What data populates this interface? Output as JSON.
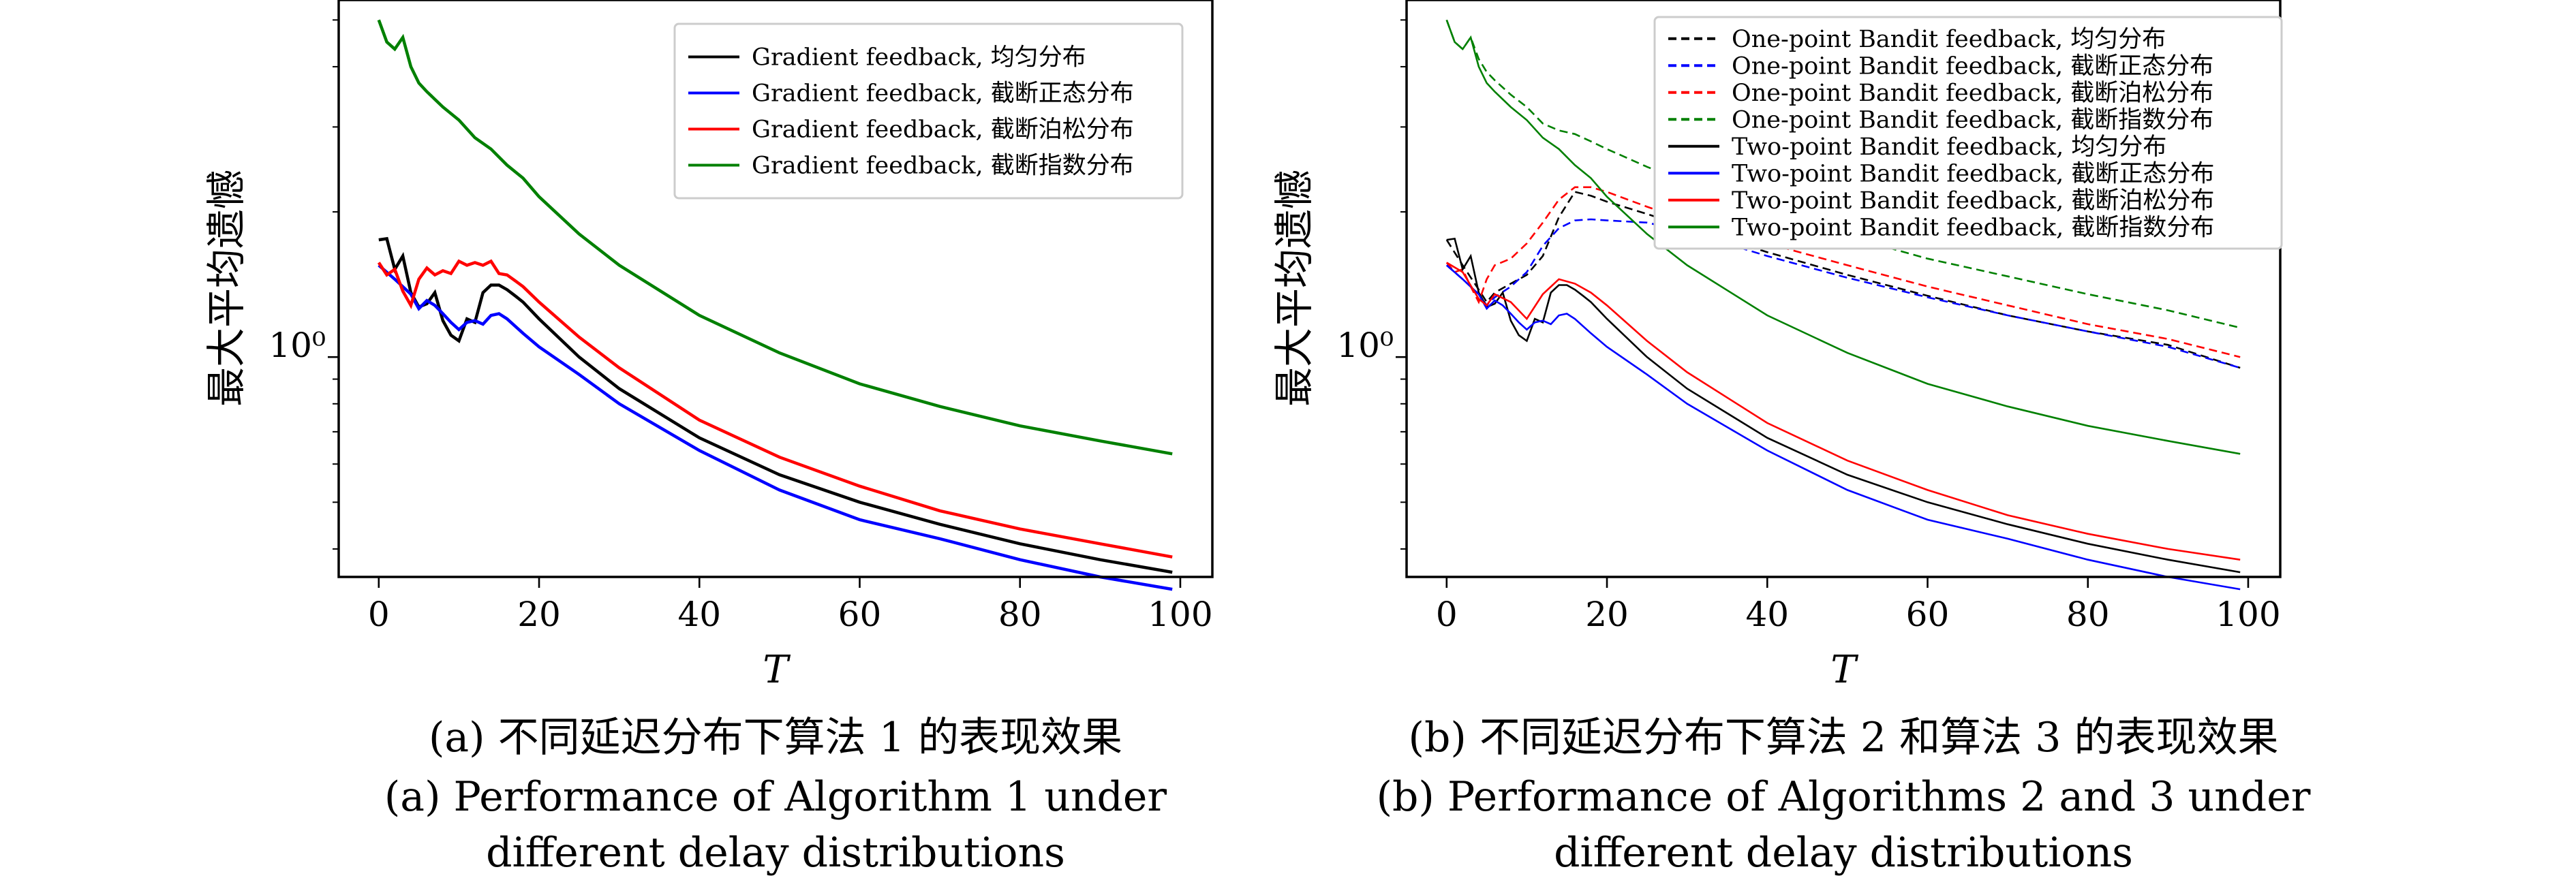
{
  "chart_data": [
    {
      "type": "line",
      "panel": "a",
      "xlabel": "T",
      "ylabel": "最大平均遗憾",
      "yscale": "log",
      "xlim": [
        -5,
        104
      ],
      "ylim": [
        0.35,
        5.5
      ],
      "xticks": [
        0,
        20,
        40,
        60,
        80,
        100
      ],
      "xtick_labels": [
        "0",
        "20",
        "40",
        "60",
        "80",
        "100"
      ],
      "ytick_label": "10⁰",
      "legend_position": "top-right",
      "caption_cn": "(a) 不同延迟分布下算法 1 的表现效果",
      "caption_en_line1": "(a) Performance of Algorithm 1 under",
      "caption_en_line2": "different delay distributions",
      "series": [
        {
          "name": "Gradient feedback, 均匀分布",
          "color": "#000000",
          "dash": "solid",
          "x": [
            0,
            1,
            2,
            3,
            4,
            5,
            6,
            7,
            8,
            9,
            10,
            11,
            12,
            13,
            14,
            15,
            16,
            17,
            18,
            20,
            25,
            30,
            40,
            50,
            60,
            70,
            80,
            90,
            99
          ],
          "y": [
            1.75,
            1.76,
            1.52,
            1.62,
            1.36,
            1.27,
            1.29,
            1.36,
            1.19,
            1.11,
            1.08,
            1.2,
            1.18,
            1.36,
            1.41,
            1.41,
            1.38,
            1.34,
            1.3,
            1.2,
            1.0,
            0.86,
            0.68,
            0.57,
            0.5,
            0.45,
            0.41,
            0.38,
            0.358
          ]
        },
        {
          "name": "Gradient feedback, 截断正态分布",
          "color": "#0000ff",
          "dash": "solid",
          "x": [
            0,
            2,
            4,
            5,
            6,
            7,
            8,
            9,
            10,
            11,
            12,
            13,
            14,
            15,
            16,
            18,
            20,
            25,
            30,
            40,
            50,
            60,
            70,
            80,
            90,
            99
          ],
          "y": [
            1.55,
            1.45,
            1.35,
            1.26,
            1.31,
            1.28,
            1.23,
            1.18,
            1.14,
            1.18,
            1.19,
            1.17,
            1.22,
            1.23,
            1.2,
            1.12,
            1.05,
            0.92,
            0.8,
            0.64,
            0.53,
            0.46,
            0.42,
            0.38,
            0.35,
            0.33
          ]
        },
        {
          "name": "Gradient feedback, 截断泊松分布",
          "color": "#ff0000",
          "dash": "solid",
          "x": [
            0,
            1,
            2,
            3,
            4,
            5,
            6,
            7,
            8,
            9,
            10,
            11,
            12,
            13,
            14,
            15,
            16,
            17,
            18,
            20,
            25,
            30,
            40,
            50,
            60,
            70,
            80,
            90,
            99
          ],
          "y": [
            1.57,
            1.48,
            1.52,
            1.37,
            1.28,
            1.45,
            1.53,
            1.48,
            1.51,
            1.49,
            1.58,
            1.55,
            1.57,
            1.55,
            1.58,
            1.49,
            1.48,
            1.44,
            1.4,
            1.3,
            1.1,
            0.95,
            0.74,
            0.62,
            0.54,
            0.48,
            0.44,
            0.41,
            0.385
          ]
        },
        {
          "name": "Gradient feedback, 截断指数分布",
          "color": "#008000",
          "dash": "solid",
          "x": [
            0,
            1,
            2,
            3,
            4,
            5,
            6,
            8,
            10,
            12,
            14,
            16,
            18,
            20,
            25,
            30,
            40,
            50,
            60,
            70,
            80,
            90,
            99
          ],
          "y": [
            5.0,
            4.5,
            4.35,
            4.6,
            4.0,
            3.7,
            3.55,
            3.3,
            3.1,
            2.85,
            2.7,
            2.5,
            2.35,
            2.15,
            1.8,
            1.55,
            1.22,
            1.02,
            0.88,
            0.79,
            0.72,
            0.67,
            0.63
          ]
        }
      ]
    },
    {
      "type": "line",
      "panel": "b",
      "xlabel": "T",
      "ylabel": "最大平均遗憾",
      "yscale": "log",
      "xlim": [
        -5,
        104
      ],
      "ylim": [
        0.35,
        5.5
      ],
      "xticks": [
        0,
        20,
        40,
        60,
        80,
        100
      ],
      "xtick_labels": [
        "0",
        "20",
        "40",
        "60",
        "80",
        "100"
      ],
      "ytick_label": "10⁰",
      "legend_position": "top-right",
      "caption_cn": "(b) 不同延迟分布下算法 2 和算法 3 的表现效果",
      "caption_en_line1": "(b) Performance of Algorithms 2 and 3 under",
      "caption_en_line2": "different delay distributions",
      "series": [
        {
          "name": "One-point Bandit feedback, 均匀分布",
          "color": "#000000",
          "dash": "dashed",
          "x": [
            0,
            2,
            4,
            5,
            6,
            8,
            10,
            12,
            14,
            16,
            18,
            20,
            25,
            30,
            40,
            50,
            60,
            70,
            80,
            90,
            99
          ],
          "y": [
            1.75,
            1.55,
            1.38,
            1.3,
            1.36,
            1.42,
            1.48,
            1.62,
            1.95,
            2.2,
            2.16,
            2.1,
            1.98,
            1.86,
            1.65,
            1.48,
            1.34,
            1.22,
            1.13,
            1.06,
            0.95
          ]
        },
        {
          "name": "One-point Bandit feedback, 截断正态分布",
          "color": "#0000ff",
          "dash": "dashed",
          "x": [
            0,
            2,
            4,
            5,
            6,
            8,
            10,
            12,
            14,
            16,
            18,
            20,
            25,
            30,
            40,
            50,
            60,
            70,
            80,
            90,
            99
          ],
          "y": [
            1.55,
            1.45,
            1.35,
            1.28,
            1.33,
            1.4,
            1.5,
            1.7,
            1.85,
            1.92,
            1.93,
            1.92,
            1.9,
            1.82,
            1.62,
            1.46,
            1.33,
            1.22,
            1.13,
            1.05,
            0.95
          ]
        },
        {
          "name": "One-point Bandit feedback, 截断泊松分布",
          "color": "#ff0000",
          "dash": "dashed",
          "x": [
            0,
            1,
            2,
            3,
            4,
            5,
            6,
            8,
            10,
            12,
            14,
            16,
            18,
            20,
            25,
            30,
            40,
            50,
            60,
            70,
            80,
            90,
            99
          ],
          "y": [
            1.57,
            1.5,
            1.52,
            1.4,
            1.3,
            1.45,
            1.55,
            1.6,
            1.72,
            1.9,
            2.12,
            2.25,
            2.25,
            2.2,
            2.05,
            1.92,
            1.72,
            1.55,
            1.4,
            1.28,
            1.17,
            1.09,
            1.0
          ]
        },
        {
          "name": "One-point Bandit feedback, 截断指数分布",
          "color": "#008000",
          "dash": "dashed",
          "x": [
            0,
            1,
            2,
            3,
            4,
            5,
            6,
            8,
            10,
            12,
            14,
            16,
            18,
            20,
            25,
            30,
            40,
            50,
            60,
            70,
            80,
            90,
            99
          ],
          "y": [
            5.0,
            4.5,
            4.35,
            4.6,
            4.15,
            3.9,
            3.75,
            3.5,
            3.3,
            3.05,
            2.95,
            2.9,
            2.8,
            2.7,
            2.48,
            2.3,
            2.0,
            1.78,
            1.6,
            1.47,
            1.35,
            1.25,
            1.15
          ]
        },
        {
          "name": "Two-point Bandit feedback, 均匀分布",
          "color": "#000000",
          "dash": "solid",
          "x": [
            0,
            1,
            2,
            3,
            4,
            5,
            6,
            7,
            8,
            9,
            10,
            11,
            12,
            13,
            14,
            15,
            16,
            17,
            18,
            20,
            25,
            30,
            40,
            50,
            60,
            70,
            80,
            90,
            99
          ],
          "y": [
            1.75,
            1.76,
            1.52,
            1.62,
            1.36,
            1.27,
            1.29,
            1.36,
            1.19,
            1.11,
            1.08,
            1.2,
            1.18,
            1.36,
            1.41,
            1.41,
            1.38,
            1.34,
            1.3,
            1.2,
            1.0,
            0.86,
            0.68,
            0.57,
            0.5,
            0.45,
            0.41,
            0.38,
            0.358
          ]
        },
        {
          "name": "Two-point Bandit feedback, 截断正态分布",
          "color": "#0000ff",
          "dash": "solid",
          "x": [
            0,
            2,
            4,
            5,
            6,
            7,
            8,
            9,
            10,
            11,
            12,
            13,
            14,
            15,
            16,
            18,
            20,
            25,
            30,
            40,
            50,
            60,
            70,
            80,
            90,
            99
          ],
          "y": [
            1.55,
            1.45,
            1.35,
            1.26,
            1.31,
            1.28,
            1.23,
            1.18,
            1.14,
            1.18,
            1.19,
            1.17,
            1.22,
            1.23,
            1.2,
            1.12,
            1.05,
            0.92,
            0.8,
            0.64,
            0.53,
            0.46,
            0.42,
            0.38,
            0.35,
            0.33
          ]
        },
        {
          "name": "Two-point Bandit feedback, 截断泊松分布",
          "color": "#ff0000",
          "dash": "solid",
          "x": [
            0,
            2,
            4,
            5,
            6,
            8,
            10,
            12,
            14,
            16,
            18,
            20,
            25,
            30,
            40,
            50,
            60,
            70,
            80,
            90,
            99
          ],
          "y": [
            1.57,
            1.5,
            1.32,
            1.28,
            1.35,
            1.3,
            1.2,
            1.35,
            1.45,
            1.42,
            1.36,
            1.28,
            1.08,
            0.93,
            0.73,
            0.61,
            0.53,
            0.47,
            0.43,
            0.4,
            0.38
          ]
        },
        {
          "name": "Two-point Bandit feedback, 截断指数分布",
          "color": "#008000",
          "dash": "solid",
          "x": [
            0,
            1,
            2,
            3,
            4,
            5,
            6,
            8,
            10,
            12,
            14,
            16,
            18,
            20,
            25,
            30,
            40,
            50,
            60,
            70,
            80,
            90,
            99
          ],
          "y": [
            5.0,
            4.5,
            4.35,
            4.6,
            4.0,
            3.7,
            3.55,
            3.3,
            3.1,
            2.85,
            2.7,
            2.5,
            2.35,
            2.15,
            1.8,
            1.55,
            1.22,
            1.02,
            0.88,
            0.79,
            0.72,
            0.67,
            0.63
          ]
        }
      ]
    }
  ]
}
